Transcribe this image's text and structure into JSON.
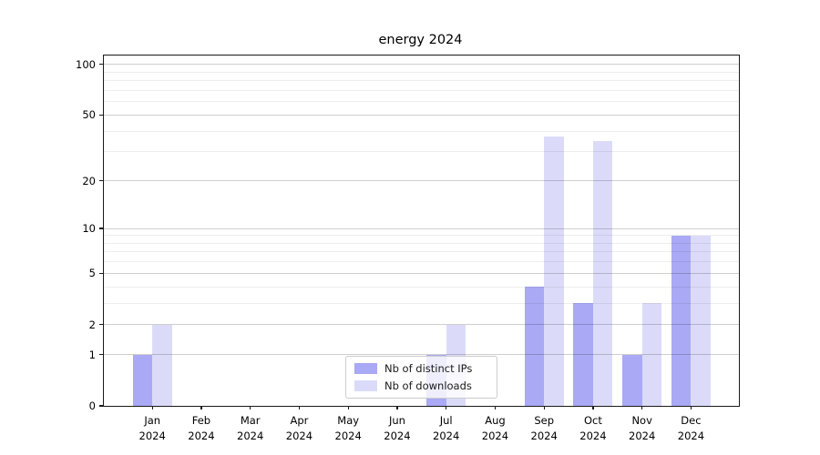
{
  "title": "energy 2024",
  "chart_data": {
    "type": "bar",
    "title": "energy 2024",
    "categories": [
      "Jan",
      "Feb",
      "Mar",
      "Apr",
      "May",
      "Jun",
      "Jul",
      "Aug",
      "Sep",
      "Oct",
      "Nov",
      "Dec"
    ],
    "category_year": "2024",
    "series": [
      {
        "name": "Nb of distinct IPs",
        "color": "#a9a9f5",
        "values": [
          1,
          0,
          0,
          0,
          0,
          0,
          1,
          0,
          4,
          3,
          1,
          9
        ]
      },
      {
        "name": "Nb of downloads",
        "color": "#dbdbf9",
        "values": [
          2,
          0,
          0,
          0,
          0,
          0,
          2,
          0,
          37,
          35,
          3,
          9
        ]
      }
    ],
    "xlabel": "",
    "ylabel": "",
    "yscale": "log1p",
    "ylim": [
      0,
      113
    ],
    "y_major_ticks": [
      0,
      1,
      2,
      5,
      10,
      20,
      50,
      100
    ],
    "y_minor_ticks": [
      3,
      4,
      6,
      7,
      8,
      9,
      30,
      40,
      60,
      70,
      80,
      90
    ],
    "grid": true,
    "legend_position": "lower center"
  },
  "legend": {
    "items": [
      {
        "label": "Nb of distinct IPs",
        "color": "#a9a9f5"
      },
      {
        "label": "Nb of downloads",
        "color": "#dbdbf9"
      }
    ]
  },
  "colors": {
    "background": "#ffffff",
    "spine": "#1a1a1a",
    "major_grid": "rgba(0,0,0,0.19)",
    "minor_grid": "rgba(0,0,0,0.07)",
    "bar_dark": "#a9a9f5",
    "bar_light": "#dbdbf9"
  }
}
